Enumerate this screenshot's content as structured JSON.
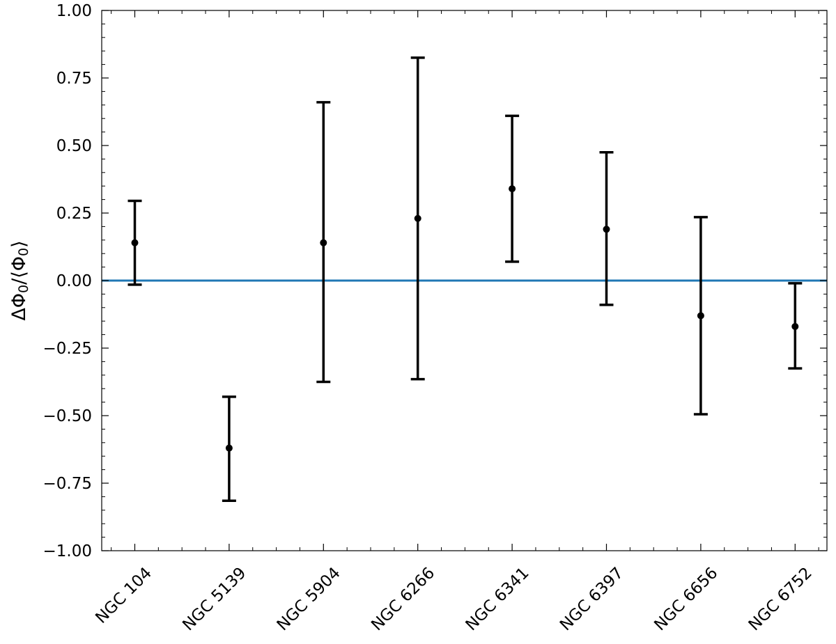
{
  "chart_data": {
    "type": "scatter",
    "title": "",
    "xlabel": "",
    "ylabel": "ΔΦ0/⟨Φ0⟩",
    "ylabel_parts": [
      "ΔΦ",
      "0",
      "/⟨Φ",
      "0",
      "⟩"
    ],
    "ylim": [
      -1.0,
      1.0
    ],
    "yticks": [
      -1.0,
      -0.75,
      -0.5,
      -0.25,
      0.0,
      0.25,
      0.5,
      0.75,
      1.0
    ],
    "ytick_labels": [
      "−1.00",
      "−0.75",
      "−0.50",
      "−0.25",
      "0.00",
      "0.25",
      "0.50",
      "0.75",
      "1.00"
    ],
    "categories": [
      "NGC 104",
      "NGC 5139",
      "NGC 5904",
      "NGC 6266",
      "NGC 6341",
      "NGC 6397",
      "NGC 6656",
      "NGC 6752"
    ],
    "values": [
      0.14,
      -0.62,
      0.14,
      0.23,
      0.34,
      0.19,
      -0.13,
      -0.17
    ],
    "error_low": [
      -0.015,
      -0.815,
      -0.375,
      -0.365,
      0.07,
      -0.09,
      -0.495,
      -0.325
    ],
    "error_high": [
      0.295,
      -0.43,
      0.66,
      0.825,
      0.61,
      0.475,
      0.235,
      -0.01
    ],
    "reference_line": {
      "y": 0.0,
      "color": "#1f77b4"
    },
    "grid": false,
    "marker_color": "#000000"
  }
}
